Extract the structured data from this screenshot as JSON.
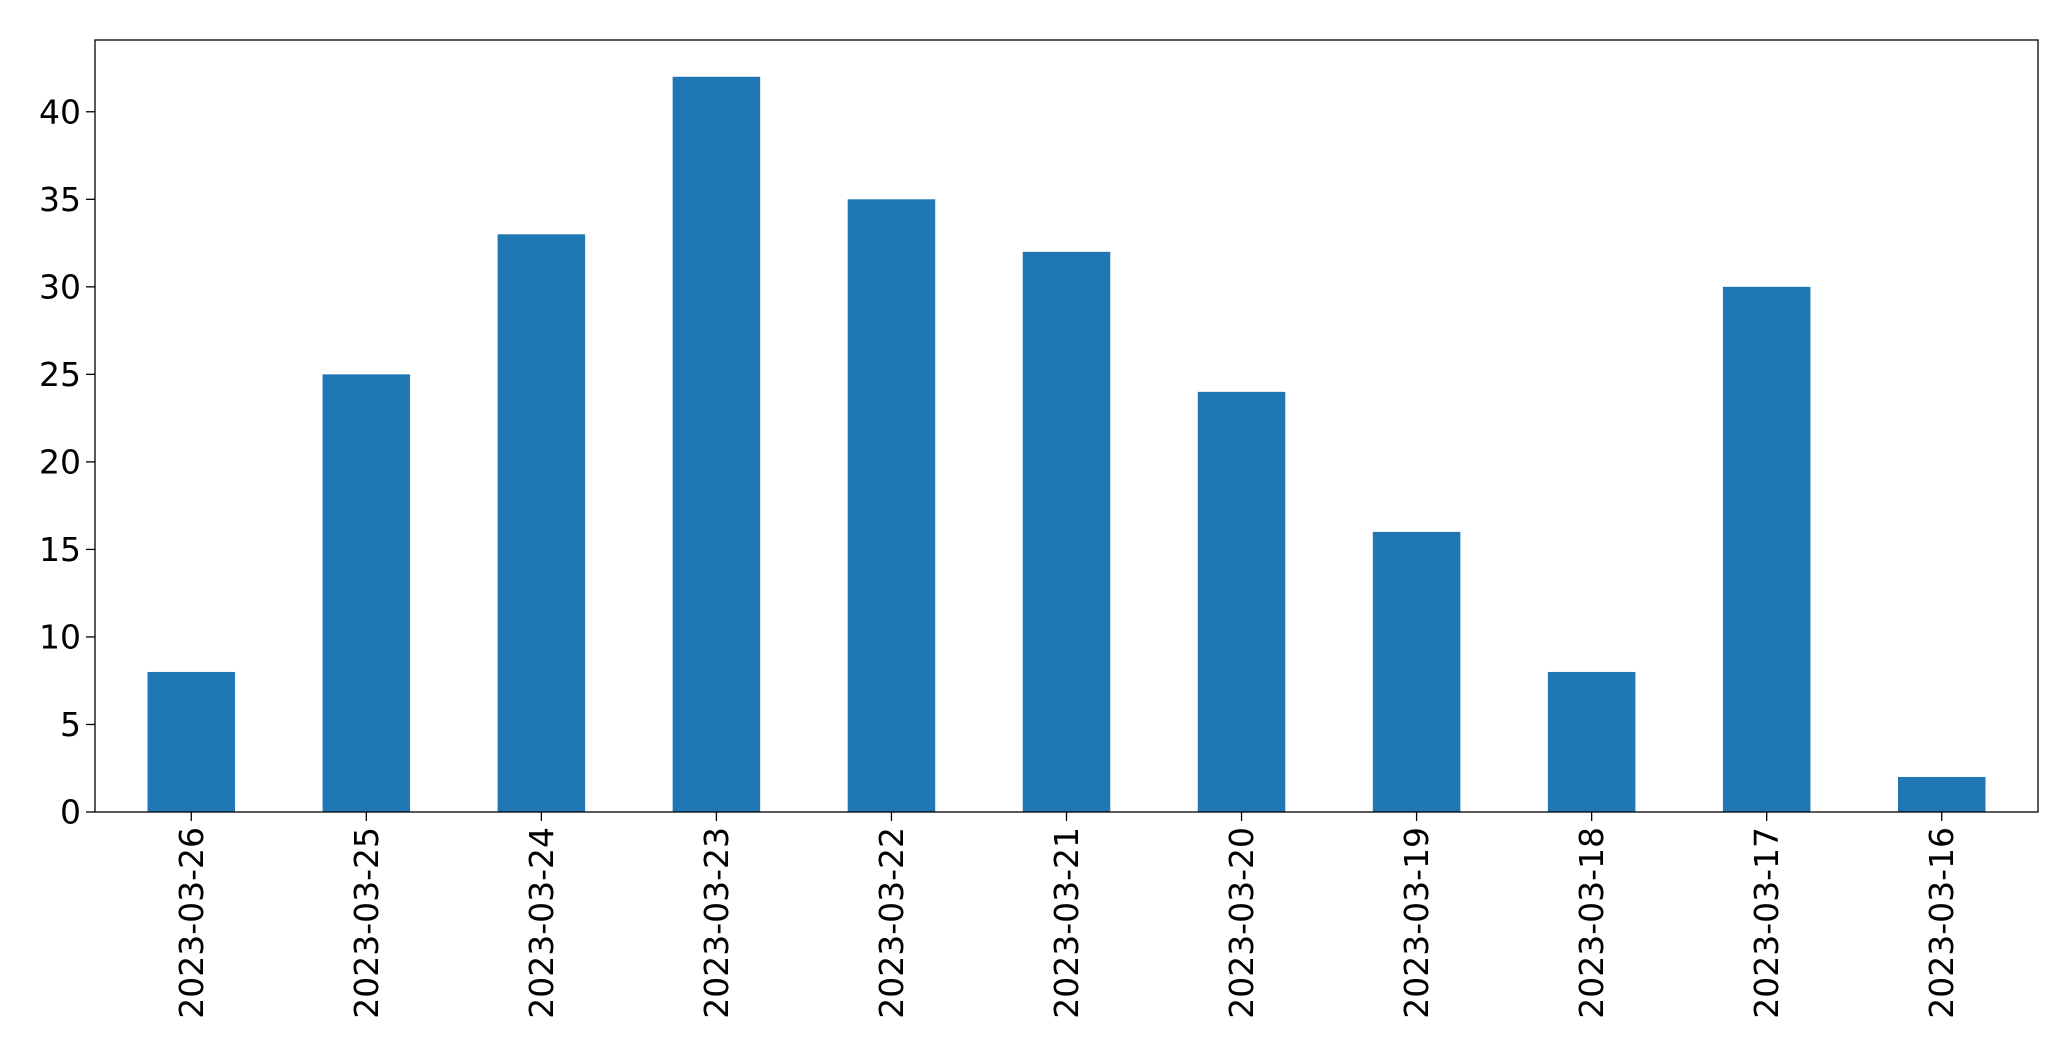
{
  "chart_data": {
    "type": "bar",
    "categories": [
      "2023-03-26",
      "2023-03-25",
      "2023-03-24",
      "2023-03-23",
      "2023-03-22",
      "2023-03-21",
      "2023-03-20",
      "2023-03-19",
      "2023-03-18",
      "2023-03-17",
      "2023-03-16"
    ],
    "values": [
      8,
      25,
      33,
      42,
      35,
      32,
      24,
      16,
      8,
      30,
      2
    ],
    "title": "",
    "xlabel": "",
    "ylabel": "",
    "ylim": [
      0,
      44.1
    ],
    "yticks": [
      0,
      5,
      10,
      15,
      20,
      25,
      30,
      35,
      40
    ],
    "grid": false,
    "legend": "none",
    "bar_color": "#1f77b4",
    "x_tick_rotation": "vertical"
  }
}
